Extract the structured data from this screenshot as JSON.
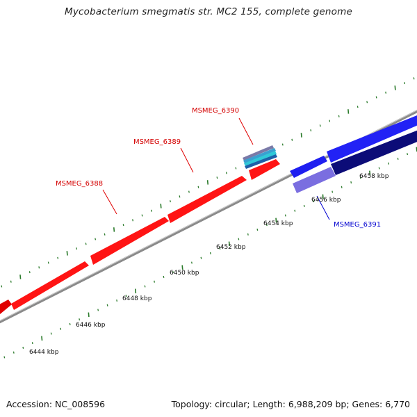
{
  "map": {
    "title": "Mycobacterium smegmatis str. MC2 155, complete genome",
    "accession": "Accession: NC_008596",
    "stats": "Topology: circular; Length: 6,988,209 bp; Genes: 6,770"
  },
  "colors": {
    "backbone": "#8a8a8a",
    "tick": "#2a7a2a",
    "forward_gene": "#ff1010",
    "reverse_gene": "#1e1ef0",
    "reverse_gene_dark": "#0c0c78",
    "reverse_gene_light": "#7a6ee0",
    "forward_label": "#d40000",
    "reverse_label": "#0000d0"
  },
  "scale_labels": [
    "6444 kbp",
    "6446 kbp",
    "6448 kbp",
    "6450 kbp",
    "6452 kbp",
    "6454 kbp",
    "6456 kbp",
    "6458 kbp"
  ],
  "gene_labels": [
    {
      "id": "MSMEG_6388",
      "strand": "forward"
    },
    {
      "id": "MSMEG_6389",
      "strand": "forward"
    },
    {
      "id": "MSMEG_6390",
      "strand": "forward"
    },
    {
      "id": "MSMEG_6391",
      "strand": "reverse"
    }
  ]
}
